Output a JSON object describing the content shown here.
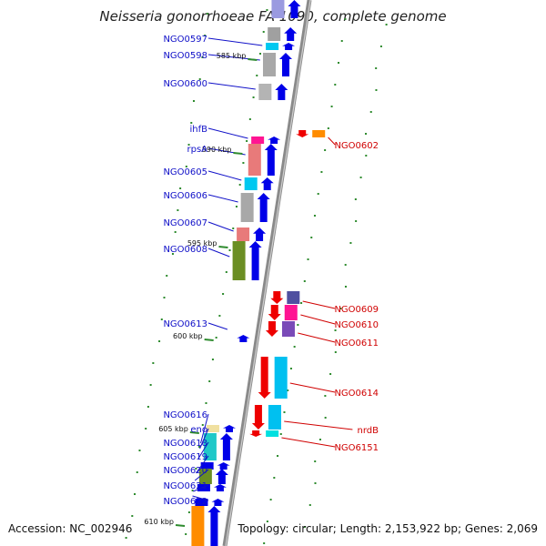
{
  "title": "Neisseria gonorrhoeae FA 1090, complete genome",
  "accession_label": "Accession: NC_002946",
  "topology_label": "Topology: circular; Length: 2,153,922 bp; Genes: 2,069",
  "colors": {
    "forward_label": "#1010c8",
    "reverse_label": "#d00000",
    "forward_arrow": "#0000e8",
    "reverse_arrow": "#ee0000",
    "backbone": "#8a8a8a",
    "gc_dot": "#2e8b2e"
  },
  "ticks": [
    "585 kbp",
    "590 kbp",
    "595 kbp",
    "600 kbp",
    "605 kbp",
    "610 kbp"
  ],
  "forward_labels": [
    "NGO0597",
    "NGO0598",
    "NGO0600",
    "ihfB",
    "rpsA",
    "NGO0605",
    "NGO0606",
    "NGO0607",
    "NGO0608",
    "NGO0613",
    "NGO0616",
    "eno",
    "NGO0618",
    "NGO0619",
    "NGO0620",
    "NGO0621",
    "NGO0622"
  ],
  "reverse_labels": [
    "NGO0602",
    "NGO0609",
    "NGO0610",
    "NGO0611",
    "NGO0614",
    "nrdB",
    "NGO6151"
  ]
}
